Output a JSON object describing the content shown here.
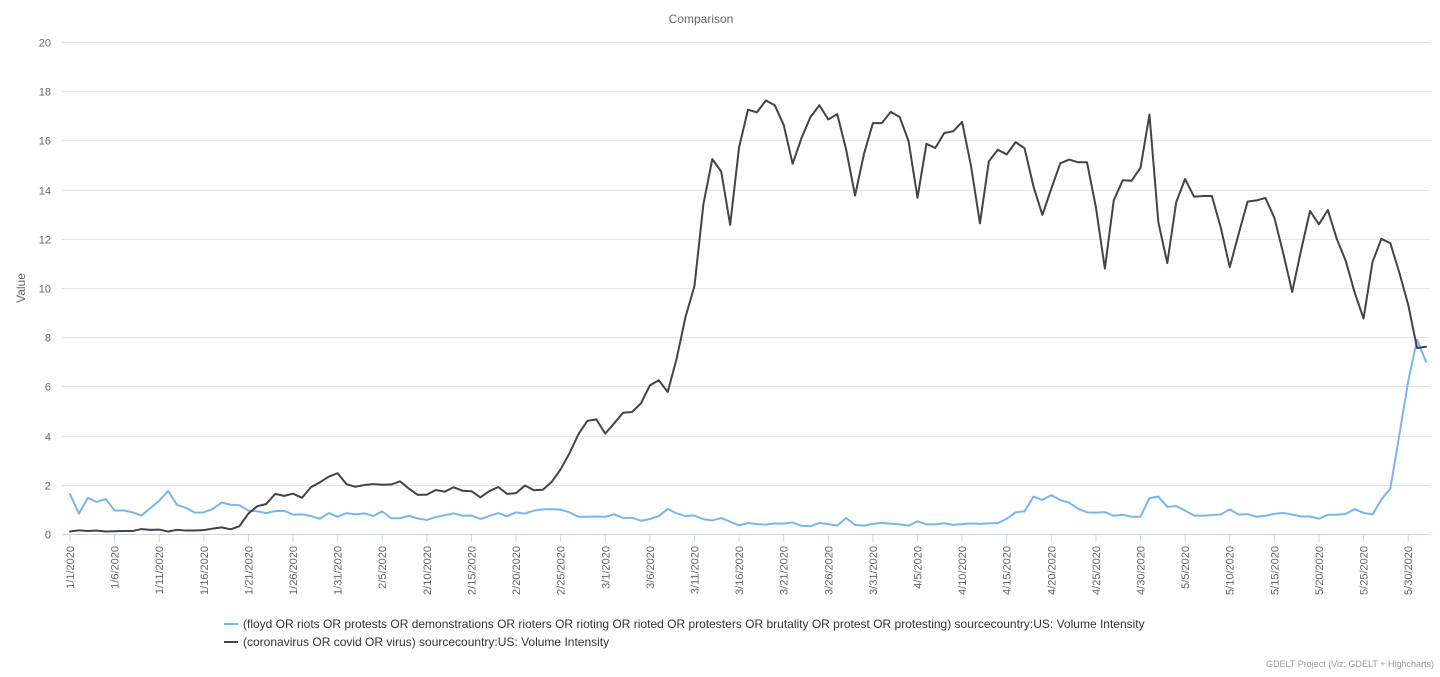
{
  "chart_data": {
    "type": "line",
    "title": "Comparison",
    "xlabel": "",
    "ylabel": "Value",
    "ylim": [
      0,
      20
    ],
    "yticks": [
      0,
      2,
      4,
      6,
      8,
      10,
      12,
      14,
      16,
      18,
      20
    ],
    "grid": true,
    "legend_position": "bottom",
    "x_start": "2020-01-01",
    "x_tick_labels": [
      "1/1/2020",
      "1/6/2020",
      "1/11/2020",
      "1/16/2020",
      "1/21/2020",
      "1/26/2020",
      "1/31/2020",
      "2/5/2020",
      "2/10/2020",
      "2/15/2020",
      "2/20/2020",
      "2/25/2020",
      "3/1/2020",
      "3/6/2020",
      "3/11/2020",
      "3/16/2020",
      "3/21/2020",
      "3/26/2020",
      "3/31/2020",
      "4/5/2020",
      "4/10/2020",
      "4/15/2020",
      "4/20/2020",
      "4/25/2020",
      "4/30/2020",
      "5/5/2020",
      "5/10/2020",
      "5/15/2020",
      "5/20/2020",
      "5/25/2020",
      "5/30/2020"
    ],
    "series": [
      {
        "name": "(floyd OR riots OR protests OR demonstrations OR rioters OR rioting OR rioted OR protesters OR brutality OR protest OR protesting) sourcecountry:US: Volume Intensity",
        "color": "#7cb5ec",
        "values": [
          1.62,
          0.83,
          1.47,
          1.3,
          1.43,
          0.95,
          0.96,
          0.88,
          0.75,
          1.05,
          1.35,
          1.75,
          1.18,
          1.06,
          0.87,
          0.88,
          1.02,
          1.28,
          1.19,
          1.17,
          0.95,
          0.92,
          0.85,
          0.93,
          0.94,
          0.79,
          0.8,
          0.73,
          0.62,
          0.85,
          0.7,
          0.85,
          0.8,
          0.84,
          0.73,
          0.92,
          0.64,
          0.64,
          0.74,
          0.63,
          0.57,
          0.69,
          0.76,
          0.84,
          0.74,
          0.75,
          0.61,
          0.73,
          0.85,
          0.72,
          0.88,
          0.83,
          0.95,
          1.0,
          1.01,
          0.99,
          0.88,
          0.7,
          0.7,
          0.71,
          0.7,
          0.8,
          0.65,
          0.66,
          0.54,
          0.61,
          0.73,
          1.02,
          0.84,
          0.73,
          0.75,
          0.6,
          0.55,
          0.65,
          0.5,
          0.35,
          0.45,
          0.4,
          0.38,
          0.43,
          0.42,
          0.47,
          0.33,
          0.32,
          0.45,
          0.4,
          0.34,
          0.65,
          0.37,
          0.34,
          0.41,
          0.45,
          0.42,
          0.39,
          0.34,
          0.52,
          0.39,
          0.39,
          0.44,
          0.37,
          0.4,
          0.43,
          0.41,
          0.43,
          0.44,
          0.62,
          0.88,
          0.92,
          1.52,
          1.38,
          1.58,
          1.38,
          1.27,
          1.03,
          0.88,
          0.87,
          0.89,
          0.74,
          0.78,
          0.7,
          0.7,
          1.46,
          1.52,
          1.1,
          1.14,
          0.95,
          0.75,
          0.74,
          0.77,
          0.8,
          1.0,
          0.79,
          0.81,
          0.7,
          0.74,
          0.82,
          0.86,
          0.79,
          0.71,
          0.71,
          0.62,
          0.78,
          0.78,
          0.82,
          1.01,
          0.86,
          0.79,
          1.4,
          1.85,
          4.0,
          6.2,
          7.9,
          7.0
        ]
      },
      {
        "name": "(coronavirus OR covid OR virus) sourcecountry:US: Volume Intensity",
        "color": "#434348",
        "values": [
          0.1,
          0.15,
          0.12,
          0.14,
          0.1,
          0.11,
          0.12,
          0.12,
          0.2,
          0.17,
          0.18,
          0.1,
          0.17,
          0.14,
          0.14,
          0.16,
          0.22,
          0.27,
          0.19,
          0.32,
          0.83,
          1.13,
          1.22,
          1.63,
          1.55,
          1.64,
          1.47,
          1.9,
          2.1,
          2.33,
          2.47,
          2.02,
          1.92,
          1.99,
          2.03,
          2.0,
          2.01,
          2.14,
          1.84,
          1.59,
          1.6,
          1.79,
          1.72,
          1.9,
          1.76,
          1.74,
          1.49,
          1.74,
          1.91,
          1.63,
          1.66,
          1.97,
          1.78,
          1.8,
          2.12,
          2.63,
          3.29,
          4.06,
          4.6,
          4.66,
          4.08,
          4.5,
          4.93,
          4.96,
          5.31,
          6.04,
          6.25,
          5.77,
          7.13,
          8.83,
          10.08,
          13.4,
          15.24,
          14.73,
          12.57,
          15.72,
          17.25,
          17.14,
          17.62,
          17.43,
          16.63,
          15.05,
          16.1,
          16.95,
          17.43,
          16.85,
          17.07,
          15.63,
          13.76,
          15.45,
          16.7,
          16.7,
          17.16,
          16.95,
          15.97,
          13.67,
          15.86,
          15.69,
          16.3,
          16.37,
          16.75,
          14.96,
          12.63,
          15.15,
          15.62,
          15.43,
          15.93,
          15.68,
          14.13,
          12.97,
          14.04,
          15.07,
          15.22,
          15.11,
          15.11,
          13.28,
          10.79,
          13.56,
          14.38,
          14.36,
          14.89,
          17.05,
          12.67,
          11.01,
          13.49,
          14.43,
          13.71,
          13.74,
          13.74,
          12.45,
          10.85,
          12.2,
          13.51,
          13.56,
          13.66,
          12.86,
          11.41,
          9.84,
          11.54,
          13.13,
          12.59,
          13.17,
          11.99,
          11.11,
          9.82,
          8.76,
          11.05,
          12.0,
          11.82,
          10.64,
          9.33,
          7.56,
          7.61
        ]
      }
    ]
  },
  "credit": "GDELT Project (Viz: GDELT + Highcharts)"
}
